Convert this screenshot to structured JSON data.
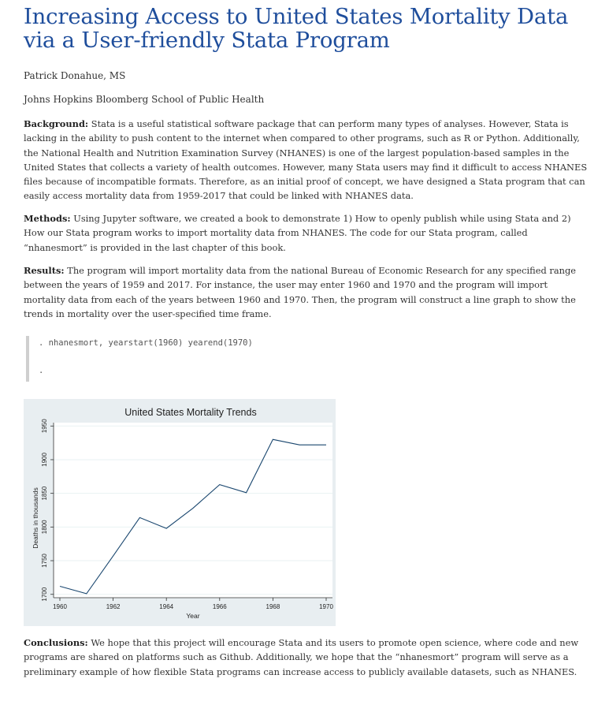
{
  "title": "Increasing Access to United States Mortality Data via a User-friendly Stata Program",
  "author": "Patrick Donahue, MS",
  "affiliation": "Johns Hopkins Bloomberg School of Public Health",
  "sections": {
    "background": {
      "heading": "Background:",
      "text": "Stata is a useful statistical software package that can perform many types of analyses. However, Stata is lacking in the ability to push content to the internet when compared to other programs, such as R or Python. Additionally, the National Health and Nutrition Examination Survey (NHANES) is one of the largest population-based samples in the United States that collects a variety of health outcomes. However, many Stata users may find it difficult to access NHANES files because of incompatible formats. Therefore, as an initial proof of concept, we have designed a Stata program that can easily access mortality data from 1959-2017 that could be linked with NHANES data."
    },
    "methods": {
      "heading": "Methods:",
      "text": "Using Jupyter software, we created a book to demonstrate 1) How to openly publish while using Stata and 2) How our Stata program works to import mortality data from NHANES. The code for our Stata program, called “nhanesmort” is provided in the last chapter of this book."
    },
    "results": {
      "heading": "Results:",
      "text": "The program will import mortality data from the national Bureau of Economic Research for any specified range between the years of 1959 and 2017. For instance, the user may enter 1960 and 1970 and the program will import mortality data from each of the years between 1960 and 1970. Then, the program will construct a line graph to show the trends in mortality over the user-specified time frame."
    },
    "conclusions": {
      "heading": "Conclusions:",
      "text": "We hope that this project will encourage Stata and its users to promote open science, where code and new programs are shared on platforms such as Github. Additionally, we hope that the “nhanesmort” program will serve as a preliminary example of how flexible Stata programs can increase access to publicly available datasets, such as NHANES."
    }
  },
  "code": {
    "line1": ". nhanesmort, yearstart(1960) yearend(1970)",
    "line2": "."
  },
  "chart_data": {
    "type": "line",
    "title": "United States Mortality Trends",
    "xlabel": "Year",
    "ylabel": "Deaths in thousands",
    "x": [
      1960,
      1961,
      1962,
      1963,
      1964,
      1965,
      1966,
      1967,
      1968,
      1969,
      1970
    ],
    "series": [
      {
        "values": [
          1712,
          1701,
          1757,
          1814,
          1798,
          1828,
          1863,
          1851,
          1930,
          1922,
          1922
        ]
      }
    ],
    "xticks": [
      1960,
      1962,
      1964,
      1966,
      1968,
      1970
    ],
    "yticks": [
      1700,
      1750,
      1800,
      1850,
      1900,
      1950
    ],
    "xlim": [
      1960,
      1970
    ],
    "ylim": [
      1695,
      1955
    ],
    "grid": true,
    "colors": {
      "line": "#1a476f",
      "plot_bg": "#ffffff",
      "outer_bg": "#e8eef1",
      "grid": "#eaf2f3"
    }
  }
}
